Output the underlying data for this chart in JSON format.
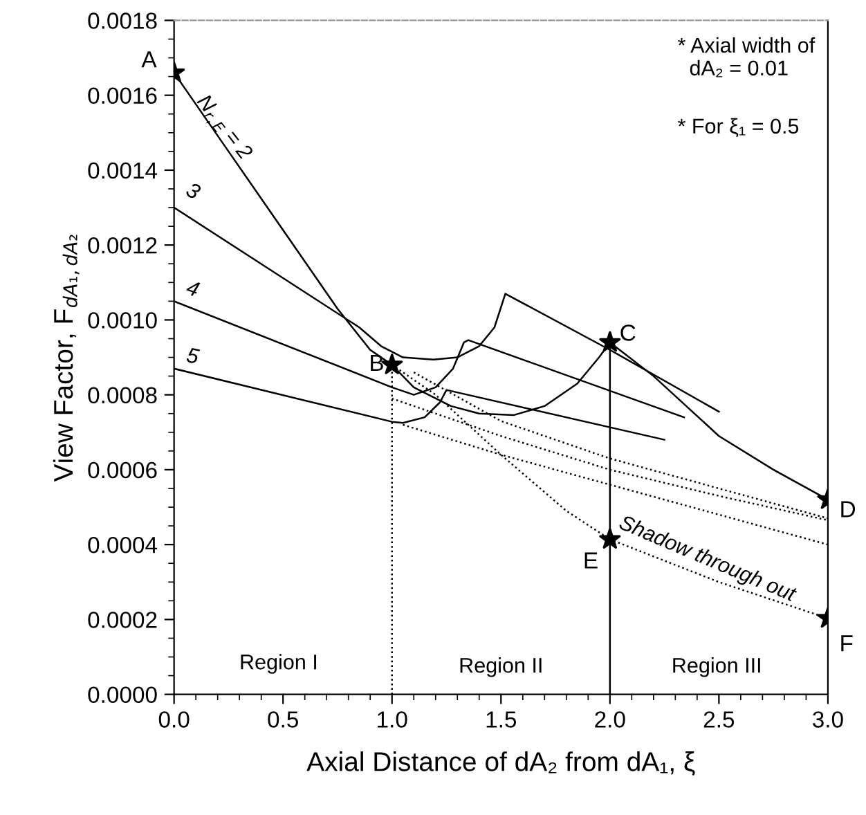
{
  "chart_data": {
    "type": "line",
    "xlabel": "Axial Distance of dA₂ from dA₁, ξ",
    "ylabel": "View Factor, F$_{dA₁,dA₂}$",
    "xlim": [
      0,
      3
    ],
    "xticks": [
      {
        "value": 0,
        "label": "0.0"
      },
      {
        "value": 0.5,
        "label": "0.5"
      },
      {
        "value": 1,
        "label": "1.0"
      },
      {
        "value": 1.5,
        "label": "1.5"
      },
      {
        "value": 2,
        "label": "2.0"
      },
      {
        "value": 2.5,
        "label": "2.5"
      },
      {
        "value": 3,
        "label": "3.0"
      }
    ],
    "ylim": [
      0,
      0.0018
    ],
    "yticks": [
      {
        "value": 0,
        "label": "0.0000"
      },
      {
        "value": 0.0002,
        "label": "0.0002"
      },
      {
        "value": 0.0004,
        "label": "0.0004"
      },
      {
        "value": 0.0006,
        "label": "0.0006"
      },
      {
        "value": 0.0008,
        "label": "0.0008"
      },
      {
        "value": 0.001,
        "label": "0.0010"
      },
      {
        "value": 0.0012,
        "label": "0.0012"
      },
      {
        "value": 0.0014,
        "label": "0.0014"
      },
      {
        "value": 0.0016,
        "label": "0.0016"
      },
      {
        "value": 0.0018,
        "label": "0.0018"
      }
    ],
    "grid": false,
    "legend": false,
    "series": [
      {
        "type": "line",
        "color": "#000000",
        "line_style": "solid",
        "x": [
          0,
          0.25,
          0.5,
          0.75,
          0.9,
          1.0,
          1.1,
          1.27,
          1.4,
          1.56,
          1.7,
          1.85,
          1.95,
          2.0,
          2.2,
          2.5,
          2.75,
          3.0
        ],
        "values": [
          0.00166,
          0.00145,
          0.00124,
          0.00103,
          0.00092,
          0.00088,
          0.00082,
          0.00077,
          0.00075,
          0.000746,
          0.00077,
          0.00083,
          0.0009,
          0.00094,
          0.00085,
          0.00069,
          0.0006,
          0.00052
        ]
      },
      {
        "type": "line",
        "color": "#000000",
        "line_style": "solid",
        "x": [
          0,
          0.85,
          0.95,
          1.05,
          1.19,
          1.3,
          1.4,
          1.47,
          1.52,
          2.0,
          2.5
        ],
        "values": [
          0.0013,
          0.00098,
          0.00093,
          0.0009,
          0.000894,
          0.0009,
          0.00093,
          0.00098,
          0.00107,
          0.00092,
          0.000755
        ]
      },
      {
        "type": "line",
        "color": "#000000",
        "line_style": "solid",
        "x": [
          0,
          1.0,
          1.1,
          1.2,
          1.28,
          1.33,
          1.35,
          2.34
        ],
        "values": [
          0.00105,
          0.00082,
          0.0008,
          0.00082,
          0.00087,
          0.00094,
          0.000946,
          0.00074
        ]
      },
      {
        "type": "line",
        "color": "#000000",
        "line_style": "solid",
        "x": [
          0,
          1.0,
          1.05,
          1.15,
          1.22,
          1.25,
          2.25
        ],
        "values": [
          0.00087,
          0.000728,
          0.000725,
          0.00074,
          0.00078,
          0.000813,
          0.00068
        ]
      },
      {
        "type": "line",
        "color": "#000000",
        "line_style": "dotted",
        "x": [
          1.0,
          1.2,
          1.5,
          1.8,
          2.0,
          2.5,
          3.0
        ],
        "values": [
          0.00088,
          0.0008,
          0.00064,
          0.00049,
          0.000414,
          0.0003,
          0.000203
        ]
      },
      {
        "type": "line",
        "color": "#000000",
        "line_style": "dotted",
        "x": [
          1.1,
          1.5,
          2.0,
          2.5,
          3.0
        ],
        "values": [
          0.00086,
          0.00073,
          0.00063,
          0.00055,
          0.00047
        ]
      },
      {
        "type": "line",
        "color": "#000000",
        "line_style": "dotted",
        "x": [
          1.0,
          1.5,
          2.0,
          2.5,
          3.0
        ],
        "values": [
          0.00079,
          0.00069,
          0.0006,
          0.00053,
          0.000465
        ]
      },
      {
        "type": "line",
        "color": "#000000",
        "line_style": "dotted",
        "x": [
          1.05,
          1.5,
          2.0,
          2.5,
          3.0
        ],
        "values": [
          0.00072,
          0.00064,
          0.00056,
          0.00048,
          0.0004
        ]
      },
      {
        "type": "line",
        "color": "#000000",
        "line_style": "dotted",
        "x": [
          1,
          1
        ],
        "values": [
          0,
          0.00088
        ]
      },
      {
        "type": "line",
        "color": "#000000",
        "line_style": "solid",
        "x": [
          2,
          2
        ],
        "values": [
          0,
          0.00094
        ]
      },
      {
        "type": "scatter",
        "color": "#000000",
        "marker": "star",
        "x": [
          0,
          1,
          2,
          3,
          2,
          3
        ],
        "values": [
          0.00166,
          0.00088,
          0.00094,
          0.00052,
          0.000414,
          0.000203
        ]
      }
    ],
    "annotations": [
      {
        "text": "A",
        "x": 0,
        "y": 0.00166
      },
      {
        "text": "B",
        "x": 1,
        "y": 0.00088
      },
      {
        "text": "C",
        "x": 2,
        "y": 0.00094
      },
      {
        "text": "D",
        "x": 3,
        "y": 0.00052
      },
      {
        "text": "E",
        "x": 2,
        "y": 0.000414
      },
      {
        "text": "F",
        "x": 3,
        "y": 0.000203
      },
      "N$_{r,E}$ = 2",
      "3",
      "4",
      "5",
      "Shadow through out",
      "* Axial width of\n  dA₂ = 0.01",
      "* For ξ₁ = 0.5",
      "Region I",
      "Region II",
      "Region III"
    ]
  }
}
